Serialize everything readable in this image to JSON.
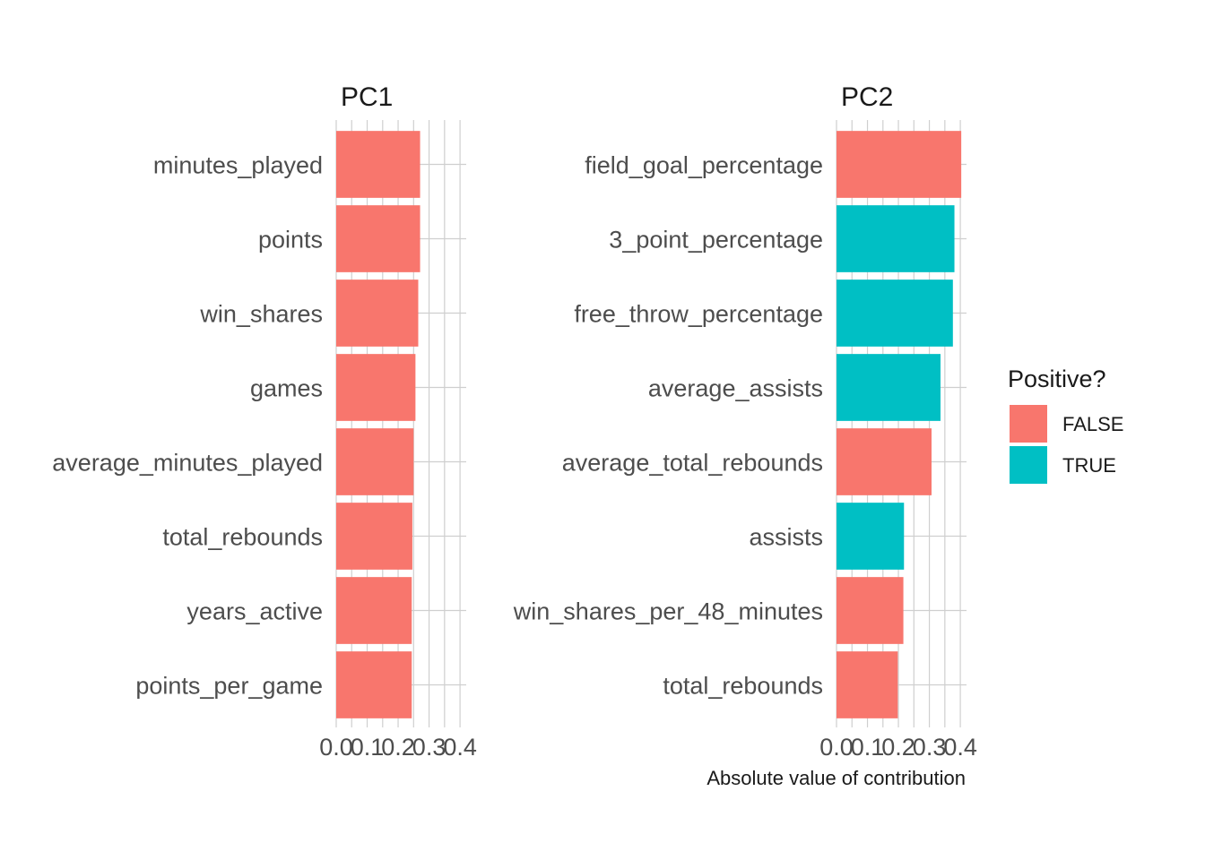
{
  "chart_data": {
    "type": "bar",
    "orientation": "horizontal",
    "xlabel": "Absolute value of contribution",
    "xlim": [
      0,
      0.42
    ],
    "x_ticks": [
      0.0,
      0.1,
      0.2,
      0.3,
      0.4
    ],
    "x_tick_labels": [
      "0.0",
      "0.1",
      "0.2",
      "0.3",
      "0.4"
    ],
    "grid": true,
    "legend": {
      "title": "Positive?",
      "placement": "right",
      "entries": [
        {
          "label": "FALSE",
          "color": "#F8766D"
        },
        {
          "label": "TRUE",
          "color": "#00BFC4"
        }
      ]
    },
    "panels": [
      {
        "title": "PC1",
        "categories": [
          "minutes_played",
          "points",
          "win_shares",
          "games",
          "average_minutes_played",
          "total_rebounds",
          "years_active",
          "points_per_game"
        ],
        "values": [
          0.271,
          0.271,
          0.265,
          0.256,
          0.25,
          0.246,
          0.244,
          0.244
        ],
        "positive": [
          "FALSE",
          "FALSE",
          "FALSE",
          "FALSE",
          "FALSE",
          "FALSE",
          "FALSE",
          "FALSE"
        ]
      },
      {
        "title": "PC2",
        "categories": [
          "field_goal_percentage",
          "3_point_percentage",
          "free_throw_percentage",
          "average_assists",
          "average_total_rebounds",
          "assists",
          "win_shares_per_48_minutes",
          "total_rebounds"
        ],
        "values": [
          0.403,
          0.381,
          0.376,
          0.336,
          0.307,
          0.218,
          0.216,
          0.198
        ],
        "positive": [
          "FALSE",
          "TRUE",
          "TRUE",
          "TRUE",
          "FALSE",
          "TRUE",
          "FALSE",
          "FALSE"
        ]
      }
    ]
  }
}
